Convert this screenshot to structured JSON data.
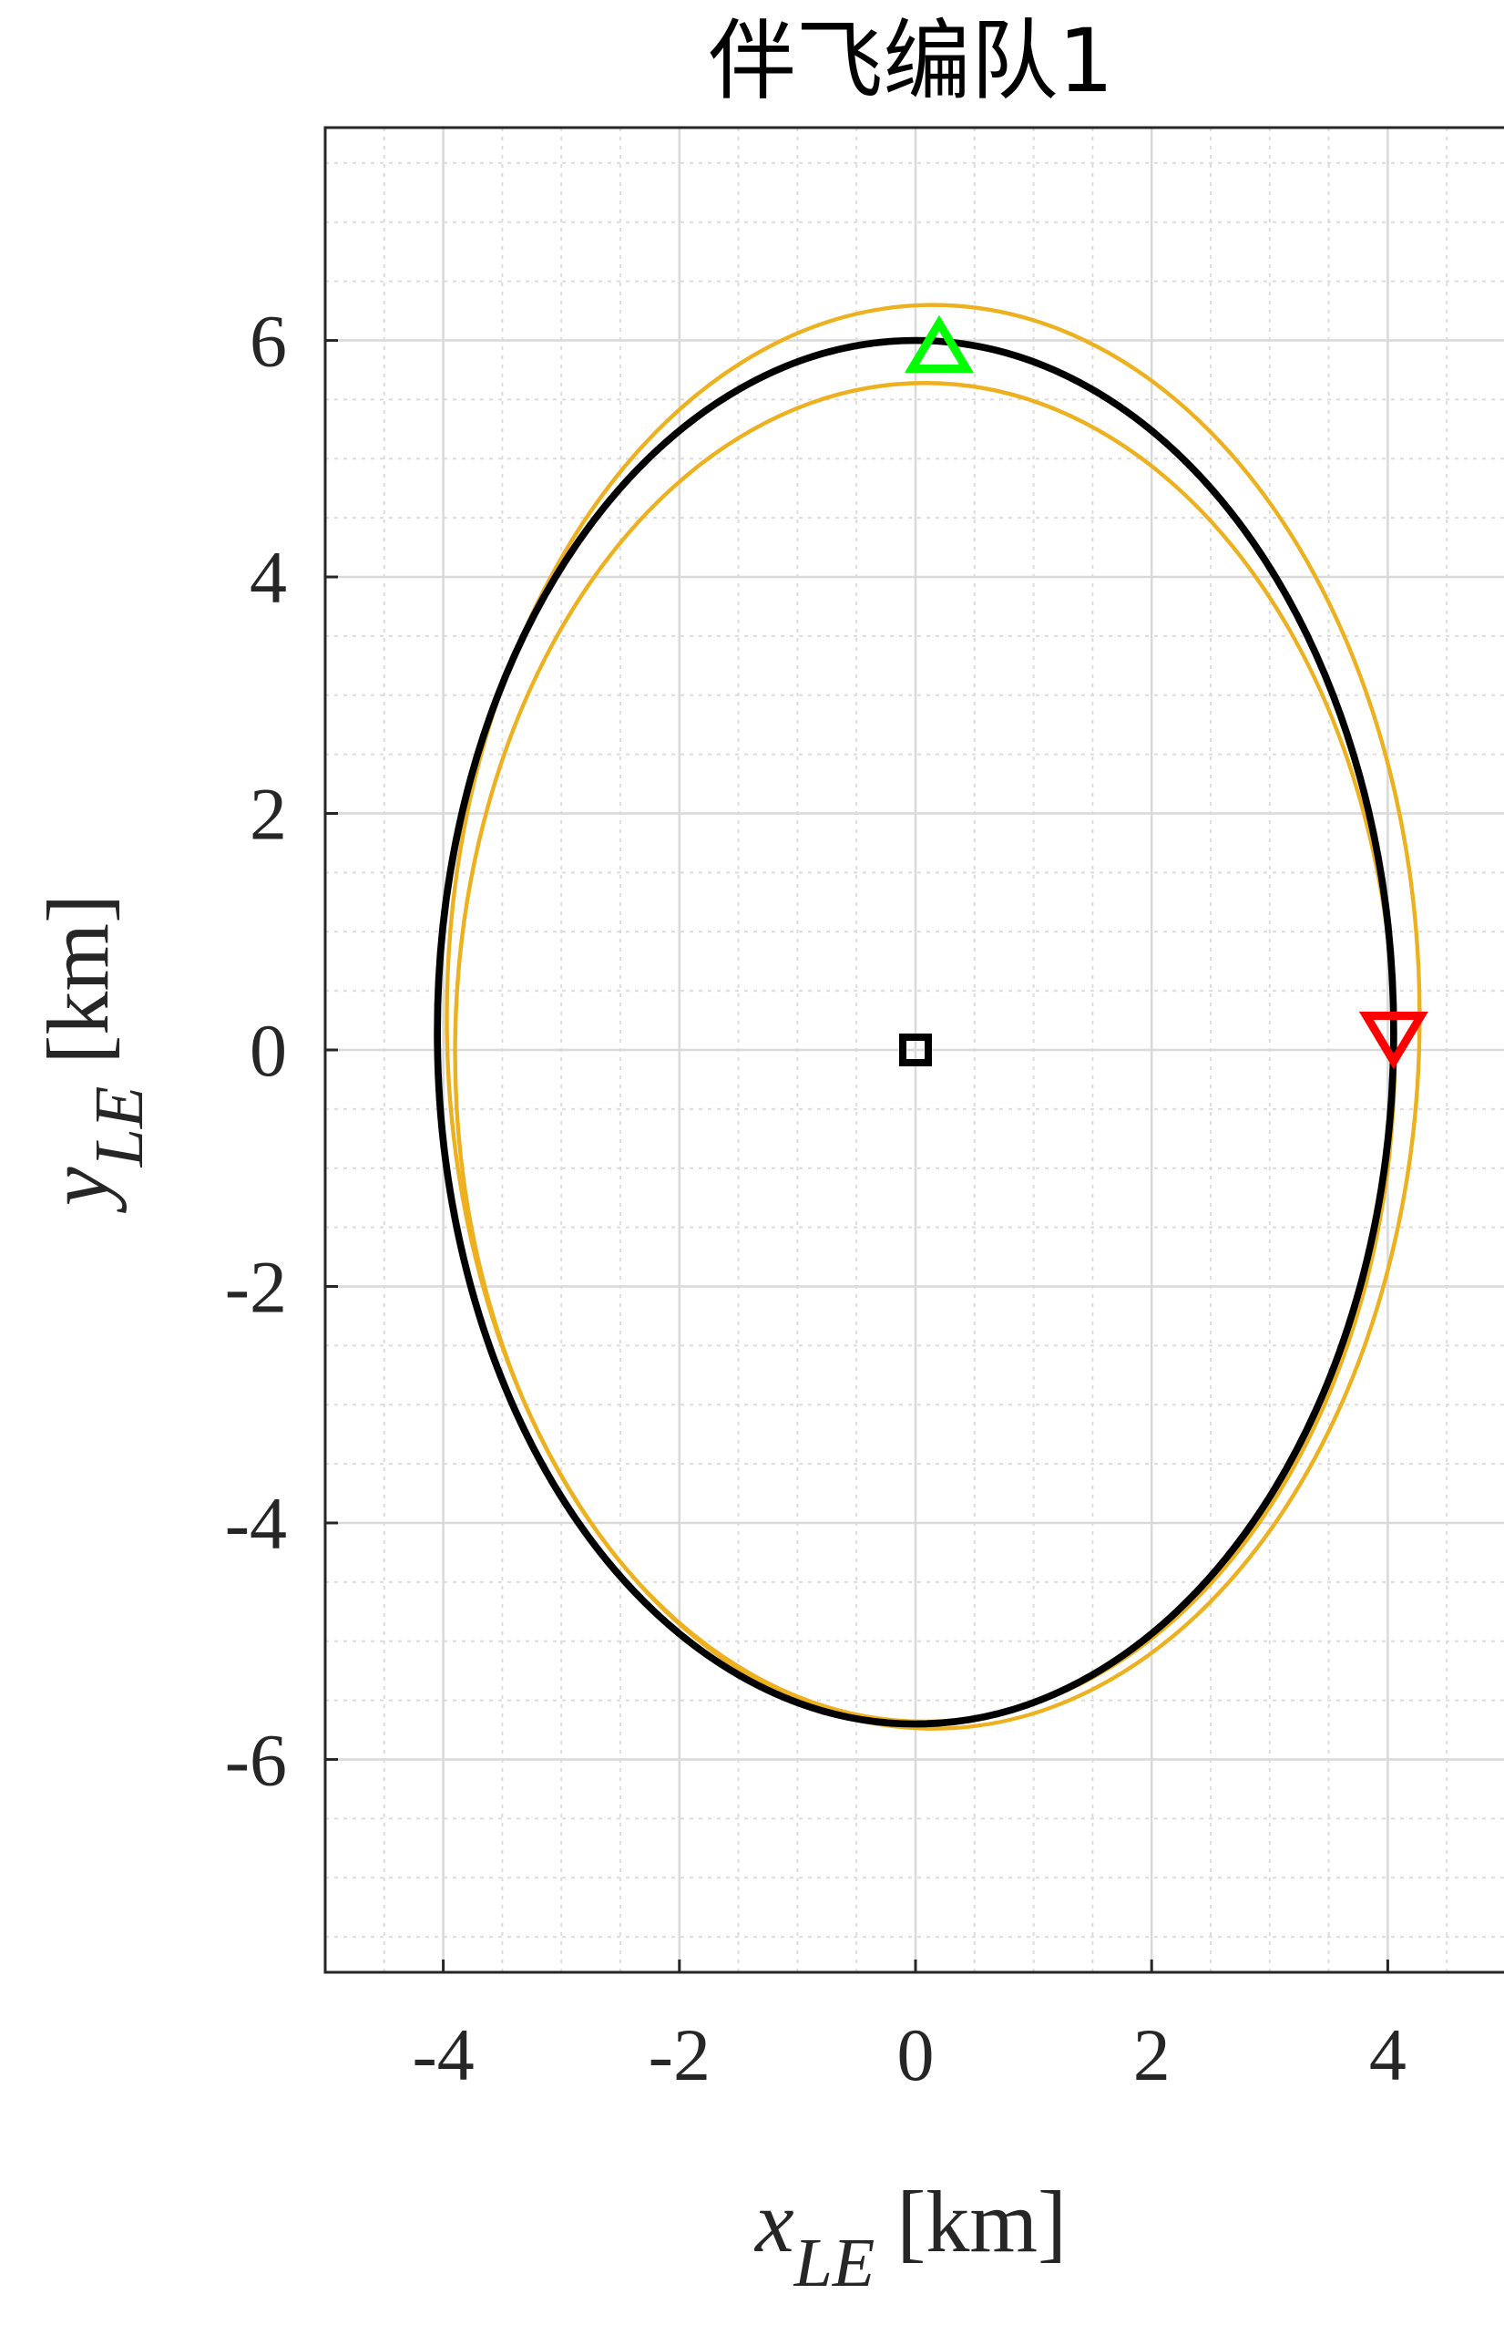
{
  "chart_data": {
    "type": "line",
    "title": "伴飞编队1",
    "xlabel": {
      "var": "x",
      "sub": "LE",
      "unit": " [km]"
    },
    "ylabel": {
      "var": "y",
      "sub": "LE",
      "unit": " [km]"
    },
    "xlim": [
      -5,
      5
    ],
    "ylim": [
      -7.8,
      7.8
    ],
    "xticks": [
      -4,
      -2,
      0,
      2,
      4
    ],
    "yticks": [
      -6,
      -4,
      -2,
      0,
      2,
      4,
      6
    ],
    "xtick_labels": [
      "-4",
      "-2",
      "0",
      "2",
      "4"
    ],
    "ytick_labels": [
      "-6",
      "-4",
      "-2",
      "0",
      "2",
      "4",
      "6"
    ],
    "grid": true,
    "minor_grid": true,
    "minor_step": 0.5,
    "colors": {
      "reference": "#000000",
      "actual": "#EDB120",
      "start": "#00FF00",
      "end": "#FF0000",
      "center": "#000000",
      "grid": "#d9d9d9",
      "axes": "#262626"
    },
    "series": [
      {
        "role": "reference",
        "shape": "ellipse",
        "center": [
          0,
          0.15
        ],
        "semi_axes": [
          4.05,
          5.85
        ],
        "line_width": 3.5
      },
      {
        "role": "actual",
        "shape": "ellipse",
        "center": [
          0.15,
          0.28
        ],
        "semi_axes": [
          4.12,
          6.02
        ],
        "line_width": 2
      },
      {
        "role": "actual",
        "shape": "ellipse",
        "center": [
          0.08,
          -0.02
        ],
        "semi_axes": [
          3.98,
          5.66
        ],
        "line_width": 2
      }
    ],
    "markers": [
      {
        "role": "start",
        "symbol": "triangle-up",
        "x": 0.2,
        "y": 5.9
      },
      {
        "role": "end",
        "symbol": "triangle-down",
        "x": 4.05,
        "y": 0.15
      },
      {
        "role": "center",
        "symbol": "square",
        "x": 0,
        "y": 0
      }
    ]
  }
}
